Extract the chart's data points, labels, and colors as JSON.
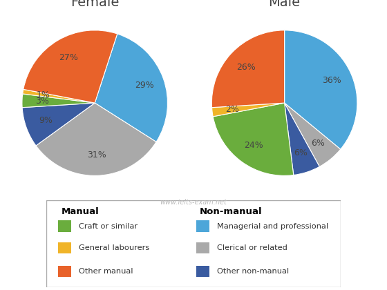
{
  "female_title": "Female",
  "male_title": "Male",
  "colors": {
    "Managerial and professional": "#4DA6D9",
    "Clerical or related": "#A9A9A9",
    "Other non-manual": "#3A5BA0",
    "Craft or similar": "#6AAD3D",
    "General labourers": "#F0B429",
    "Other manual": "#E8622A"
  },
  "female_values": [
    29,
    31,
    9,
    3,
    1,
    27
  ],
  "female_order": [
    "Managerial and professional",
    "Clerical or related",
    "Other non-manual",
    "Craft or similar",
    "General labourers",
    "Other manual"
  ],
  "male_values": [
    36,
    6,
    6,
    24,
    2,
    26
  ],
  "male_order": [
    "Managerial and professional",
    "Clerical or related",
    "Other non-manual",
    "Craft or similar",
    "General labourers",
    "Other manual"
  ],
  "watermark": "www.ielts-exam.net",
  "legend_manual_header": "Manual",
  "legend_nonmanual_header": "Non-manual",
  "legend_manual_items": [
    "Craft or similar",
    "General labourers",
    "Other manual"
  ],
  "legend_nonmanual_items": [
    "Managerial and professional",
    "Clerical or related",
    "Other non-manual"
  ],
  "title_fontsize": 14,
  "label_fontsize": 9,
  "background_color": "#FFFFFF",
  "female_startangle": 72,
  "male_startangle": 90
}
